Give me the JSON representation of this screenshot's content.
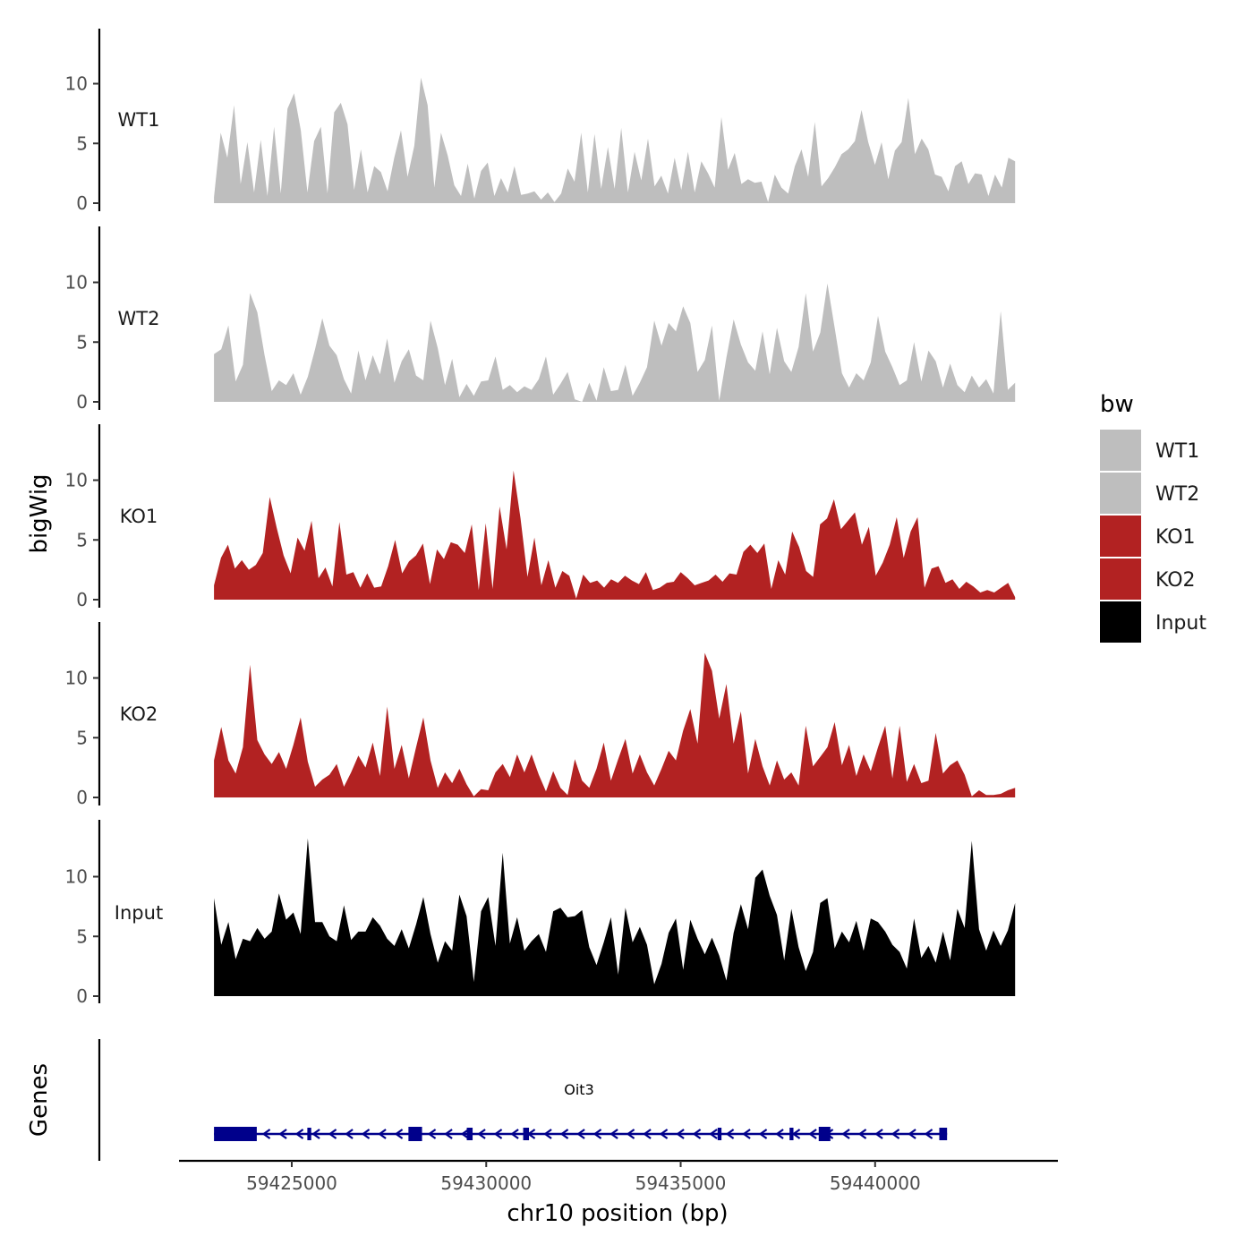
{
  "chart_data": {
    "type": "area",
    "ylabel": "bigWig",
    "genes_label": "Genes",
    "xlabel": "chr10 position (bp)",
    "xlim": [
      59422100,
      59444700
    ],
    "track_range": [
      59423000,
      59443600
    ],
    "xticks": [
      59425000,
      59430000,
      59435000,
      59440000
    ],
    "ylim": [
      0,
      14.5
    ],
    "yticks": [
      0,
      5,
      10
    ],
    "legend": {
      "title": "bw",
      "entries": [
        {
          "label": "WT1",
          "color": "#bebebe"
        },
        {
          "label": "WT2",
          "color": "#bebebe"
        },
        {
          "label": "KO1",
          "color": "#b22222"
        },
        {
          "label": "KO2",
          "color": "#b22222"
        },
        {
          "label": "Input",
          "color": "#000000"
        }
      ]
    },
    "series": [
      {
        "name": "WT1",
        "color": "#bebebe",
        "values": [
          0.5,
          5.9,
          3.8,
          8.2,
          1.6,
          5.1,
          0.9,
          5.3,
          0.6,
          6.4,
          0.8,
          7.9,
          9.2,
          6.1,
          0.9,
          5.2,
          6.4,
          0.8,
          7.6,
          8.4,
          6.6,
          1.1,
          4.5,
          0.9,
          3.1,
          2.6,
          1.0,
          3.8,
          6.1,
          2.2,
          4.8,
          10.5,
          8.2,
          1.3,
          5.9,
          4.0,
          1.5,
          0.6,
          3.3,
          0.4,
          2.7,
          3.4,
          0.6,
          2.1,
          0.9,
          3.1,
          0.7,
          0.8,
          1.0,
          0.3,
          0.9,
          0.1,
          0.8,
          2.9,
          1.8,
          5.9,
          0.9,
          5.8,
          1.2,
          4.7,
          1.2,
          6.3,
          0.9,
          4.3,
          1.9,
          5.4,
          1.4,
          2.3,
          0.8,
          3.8,
          1.1,
          4.3,
          0.9,
          3.5,
          2.5,
          1.3,
          7.2,
          2.8,
          4.2,
          1.6,
          2.0,
          1.7,
          1.8,
          0.1,
          2.4,
          1.3,
          0.8,
          3.1,
          4.5,
          2.2,
          6.8,
          1.4,
          2.1,
          3.0,
          4.1,
          4.5,
          5.2,
          7.8,
          5.1,
          3.2,
          5.1,
          2.0,
          4.4,
          5.1,
          8.8,
          4.1,
          5.4,
          4.5,
          2.4,
          2.2,
          1.0,
          3.1,
          3.5,
          1.6,
          2.5,
          2.4,
          0.6,
          2.4,
          1.3,
          3.8,
          3.5
        ]
      },
      {
        "name": "WT2",
        "color": "#bebebe",
        "values": [
          4.0,
          4.4,
          6.4,
          1.7,
          3.1,
          9.1,
          7.5,
          3.9,
          0.9,
          1.8,
          1.4,
          2.4,
          0.6,
          2.1,
          4.4,
          7.0,
          4.7,
          3.9,
          1.9,
          0.7,
          4.3,
          1.8,
          3.9,
          2.3,
          5.3,
          1.6,
          3.4,
          4.4,
          2.2,
          1.8,
          6.8,
          4.5,
          1.4,
          3.6,
          0.4,
          1.5,
          0.5,
          1.7,
          1.8,
          3.8,
          1.0,
          1.4,
          0.8,
          1.3,
          1.0,
          1.9,
          3.8,
          0.6,
          1.5,
          2.5,
          0.2,
          0.0,
          1.6,
          0.1,
          2.9,
          0.9,
          1.0,
          3.1,
          0.5,
          1.6,
          2.9,
          6.8,
          4.7,
          6.6,
          5.9,
          8.0,
          6.6,
          2.5,
          3.5,
          6.4,
          0.1,
          3.7,
          6.9,
          4.8,
          3.3,
          2.6,
          5.9,
          2.3,
          6.2,
          3.4,
          2.5,
          4.6,
          9.1,
          4.2,
          5.8,
          9.9,
          6.2,
          2.4,
          1.2,
          2.4,
          1.8,
          3.3,
          7.2,
          4.2,
          2.9,
          1.4,
          1.8,
          5.0,
          1.7,
          4.3,
          3.4,
          1.2,
          3.2,
          1.4,
          0.8,
          2.2,
          1.2,
          1.9,
          0.7,
          7.6,
          1.0,
          1.6
        ]
      },
      {
        "name": "KO1",
        "color": "#b22222",
        "values": [
          1.2,
          3.5,
          4.6,
          2.6,
          3.3,
          2.5,
          2.9,
          3.9,
          8.6,
          6.0,
          3.7,
          2.2,
          5.2,
          4.1,
          6.6,
          1.8,
          2.7,
          1.1,
          6.5,
          2.1,
          2.3,
          1.0,
          2.2,
          1.0,
          1.1,
          2.8,
          5.0,
          2.2,
          3.2,
          3.7,
          4.7,
          1.3,
          4.2,
          3.4,
          4.8,
          4.6,
          3.9,
          6.3,
          0.8,
          6.4,
          0.9,
          7.8,
          4.2,
          10.8,
          6.8,
          1.9,
          5.2,
          1.2,
          3.3,
          1.0,
          2.4,
          2.0,
          0.1,
          2.1,
          1.4,
          1.6,
          1.0,
          1.7,
          1.4,
          2.0,
          1.6,
          1.3,
          2.3,
          0.8,
          1.0,
          1.4,
          1.5,
          2.3,
          1.8,
          1.2,
          1.4,
          1.6,
          2.1,
          1.5,
          2.2,
          2.1,
          4.0,
          4.6,
          3.9,
          4.7,
          0.9,
          3.3,
          2.1,
          5.7,
          4.4,
          2.4,
          1.9,
          6.3,
          6.8,
          8.4,
          5.9,
          6.6,
          7.3,
          4.6,
          6.1,
          2.0,
          3.1,
          4.6,
          6.9,
          3.5,
          5.7,
          6.9,
          1.0,
          2.6,
          2.8,
          1.4,
          1.7,
          0.9,
          1.5,
          1.1,
          0.6,
          0.8,
          0.6,
          1.0,
          1.4,
          0.2
        ]
      },
      {
        "name": "KO2",
        "color": "#b22222",
        "values": [
          3.1,
          5.9,
          3.1,
          2.0,
          4.2,
          11.1,
          4.8,
          3.6,
          2.8,
          3.8,
          2.4,
          4.4,
          6.7,
          3.0,
          0.9,
          1.5,
          1.9,
          2.8,
          0.9,
          2.1,
          3.5,
          2.5,
          4.6,
          1.8,
          7.6,
          2.4,
          4.4,
          1.6,
          4.2,
          6.7,
          3.1,
          0.8,
          2.1,
          1.2,
          2.4,
          1.1,
          0.1,
          0.7,
          0.6,
          2.1,
          2.8,
          1.7,
          3.6,
          2.1,
          3.6,
          1.9,
          0.5,
          2.2,
          0.8,
          0.2,
          3.2,
          1.4,
          0.8,
          2.4,
          4.6,
          1.4,
          3.2,
          4.9,
          2.0,
          3.6,
          2.1,
          1.0,
          2.4,
          3.9,
          3.1,
          5.6,
          7.4,
          4.5,
          12.1,
          10.6,
          6.6,
          9.5,
          4.5,
          7.2,
          2.0,
          4.9,
          2.6,
          1.0,
          3.1,
          1.5,
          2.1,
          1.0,
          6.0,
          2.6,
          3.4,
          4.2,
          6.3,
          2.7,
          4.4,
          1.8,
          3.6,
          2.2,
          4.2,
          6.0,
          1.6,
          6.0,
          1.3,
          2.8,
          1.2,
          1.4,
          5.4,
          2.0,
          2.7,
          3.1,
          1.9,
          0.1,
          0.6,
          0.2,
          0.2,
          0.3,
          0.6,
          0.8
        ]
      },
      {
        "name": "Input",
        "color": "#000000",
        "values": [
          8.2,
          4.3,
          6.2,
          3.1,
          4.8,
          4.6,
          5.7,
          4.8,
          5.4,
          8.6,
          6.4,
          7.0,
          5.2,
          13.2,
          6.2,
          6.2,
          5.0,
          4.6,
          7.6,
          4.7,
          5.4,
          5.4,
          6.6,
          5.9,
          4.8,
          4.2,
          5.6,
          4.0,
          6.0,
          8.3,
          5.2,
          2.8,
          4.6,
          3.8,
          8.5,
          6.7,
          1.2,
          7.1,
          8.3,
          4.2,
          12.0,
          4.4,
          6.6,
          3.8,
          4.6,
          5.2,
          3.7,
          7.1,
          7.4,
          6.6,
          6.7,
          7.2,
          4.1,
          2.6,
          4.5,
          6.6,
          1.8,
          7.4,
          4.5,
          5.8,
          4.3,
          1.0,
          2.7,
          5.3,
          6.5,
          2.2,
          6.4,
          4.8,
          3.5,
          4.9,
          3.4,
          1.3,
          5.3,
          7.7,
          5.6,
          9.9,
          10.6,
          8.4,
          6.8,
          3.0,
          7.3,
          4.1,
          2.1,
          3.7,
          7.8,
          8.2,
          4.0,
          5.4,
          4.5,
          6.3,
          3.8,
          6.5,
          6.2,
          5.4,
          4.3,
          3.7,
          2.3,
          6.5,
          3.2,
          4.2,
          2.8,
          5.4,
          3.0,
          7.3,
          5.7,
          13.0,
          5.6,
          3.8,
          5.5,
          4.2,
          5.5,
          7.8
        ]
      }
    ],
    "gene": {
      "name": "Oit3",
      "strand": "-",
      "color": "#00008b",
      "start": 59423000,
      "end": 59441850,
      "exons": [
        [
          59423000,
          59424100
        ],
        [
          59425400,
          59425500
        ],
        [
          59428000,
          59428350
        ],
        [
          59429500,
          59429650
        ],
        [
          59430950,
          59431100
        ],
        [
          59435950,
          59436050
        ],
        [
          59437800,
          59437900
        ],
        [
          59438550,
          59438850
        ],
        [
          59441650,
          59441850
        ]
      ]
    }
  }
}
